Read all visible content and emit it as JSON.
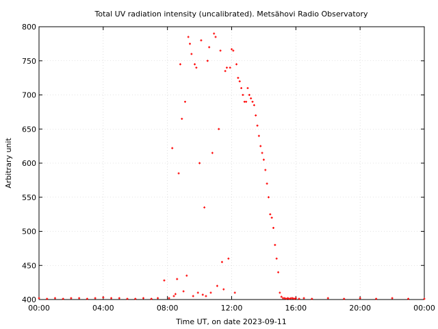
{
  "chart_data": {
    "type": "scatter",
    "title": "Total UV radiation intensity (uncalibrated). Metsähovi Radio Observatory",
    "xlabel": "Time UT, on date 2023-09-11",
    "ylabel": "Arbitrary unit",
    "x_unit": "hours UT",
    "xlim": [
      0,
      24
    ],
    "ylim": [
      400,
      800
    ],
    "x_ticks": [
      0,
      4,
      8,
      12,
      16,
      20,
      24
    ],
    "x_tick_labels": [
      "00:00",
      "04:00",
      "08:00",
      "12:00",
      "16:00",
      "20:00",
      "00:00"
    ],
    "y_ticks": [
      400,
      450,
      500,
      550,
      600,
      650,
      700,
      750,
      800
    ],
    "y_tick_labels": [
      "400",
      "450",
      "500",
      "550",
      "600",
      "650",
      "700",
      "750",
      "800"
    ],
    "grid": true,
    "legend": "none",
    "series_color": "#ff0000",
    "x": [
      0.0,
      0.5,
      1.0,
      1.5,
      2.0,
      2.5,
      3.0,
      3.5,
      4.0,
      4.5,
      5.0,
      5.5,
      6.0,
      6.5,
      7.0,
      7.4,
      7.8,
      8.1,
      8.3,
      8.4,
      8.5,
      8.6,
      8.7,
      8.8,
      8.9,
      9.0,
      9.1,
      9.2,
      9.3,
      9.4,
      9.5,
      9.6,
      9.7,
      9.8,
      9.9,
      10.0,
      10.1,
      10.2,
      10.3,
      10.4,
      10.5,
      10.6,
      10.7,
      10.8,
      10.9,
      11.0,
      11.1,
      11.2,
      11.3,
      11.4,
      11.5,
      11.6,
      11.7,
      11.8,
      11.9,
      12.0,
      12.1,
      12.2,
      12.3,
      12.4,
      12.5,
      12.6,
      12.7,
      12.8,
      12.9,
      13.0,
      13.1,
      13.2,
      13.3,
      13.4,
      13.5,
      13.6,
      13.7,
      13.8,
      13.9,
      14.0,
      14.1,
      14.2,
      14.3,
      14.4,
      14.5,
      14.6,
      14.7,
      14.8,
      14.9,
      15.0,
      15.1,
      15.2,
      15.3,
      15.4,
      15.5,
      15.6,
      15.7,
      15.8,
      15.9,
      16.0,
      16.2,
      16.5,
      17.0,
      18.0,
      19.0,
      20.0,
      21.0,
      22.0,
      23.0,
      24.0
    ],
    "y": [
      402,
      401,
      402,
      401,
      402,
      402,
      401,
      402,
      403,
      402,
      402,
      401,
      401,
      402,
      401,
      402,
      428,
      402,
      622,
      405,
      408,
      430,
      585,
      745,
      665,
      412,
      690,
      435,
      785,
      775,
      760,
      405,
      745,
      740,
      410,
      600,
      780,
      407,
      535,
      405,
      750,
      770,
      410,
      615,
      790,
      785,
      420,
      650,
      765,
      455,
      415,
      735,
      740,
      460,
      740,
      767,
      765,
      410,
      745,
      725,
      720,
      710,
      700,
      690,
      690,
      710,
      700,
      695,
      690,
      685,
      670,
      655,
      640,
      625,
      615,
      605,
      590,
      570,
      550,
      525,
      520,
      505,
      480,
      460,
      440,
      410,
      404,
      402,
      402,
      401,
      402,
      401,
      402,
      402,
      401,
      402,
      401,
      402,
      401,
      402,
      401,
      402,
      401,
      402,
      401,
      401
    ]
  }
}
